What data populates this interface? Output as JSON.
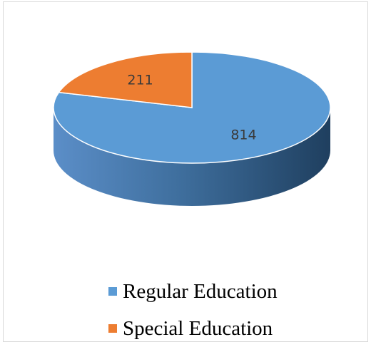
{
  "chart_data": {
    "type": "pie",
    "title": "",
    "style": "3d",
    "categories": [
      "Regular Education",
      "Special Education"
    ],
    "values": [
      814,
      211
    ],
    "colors": [
      "#5b9bd5",
      "#ed7d31"
    ],
    "data_labels": [
      "814",
      "211"
    ],
    "legend_position": "bottom"
  }
}
